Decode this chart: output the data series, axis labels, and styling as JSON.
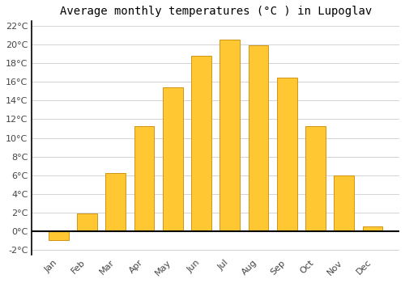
{
  "title": "Average monthly temperatures (°C ) in Lupoglav",
  "months": [
    "Jan",
    "Feb",
    "Mar",
    "Apr",
    "May",
    "Jun",
    "Jul",
    "Aug",
    "Sep",
    "Oct",
    "Nov",
    "Dec"
  ],
  "values": [
    -1.0,
    1.9,
    6.2,
    11.3,
    15.4,
    18.8,
    20.5,
    19.9,
    16.5,
    11.3,
    6.0,
    0.5
  ],
  "bar_color": "#FFC832",
  "bar_edge_color": "#CC8800",
  "ylim": [
    -2.5,
    22.5
  ],
  "yticks": [
    -2,
    0,
    2,
    4,
    6,
    8,
    10,
    12,
    14,
    16,
    18,
    20,
    22
  ],
  "grid_color": "#cccccc",
  "background_color": "#ffffff",
  "title_fontsize": 10,
  "tick_fontsize": 8,
  "bar_width": 0.7
}
